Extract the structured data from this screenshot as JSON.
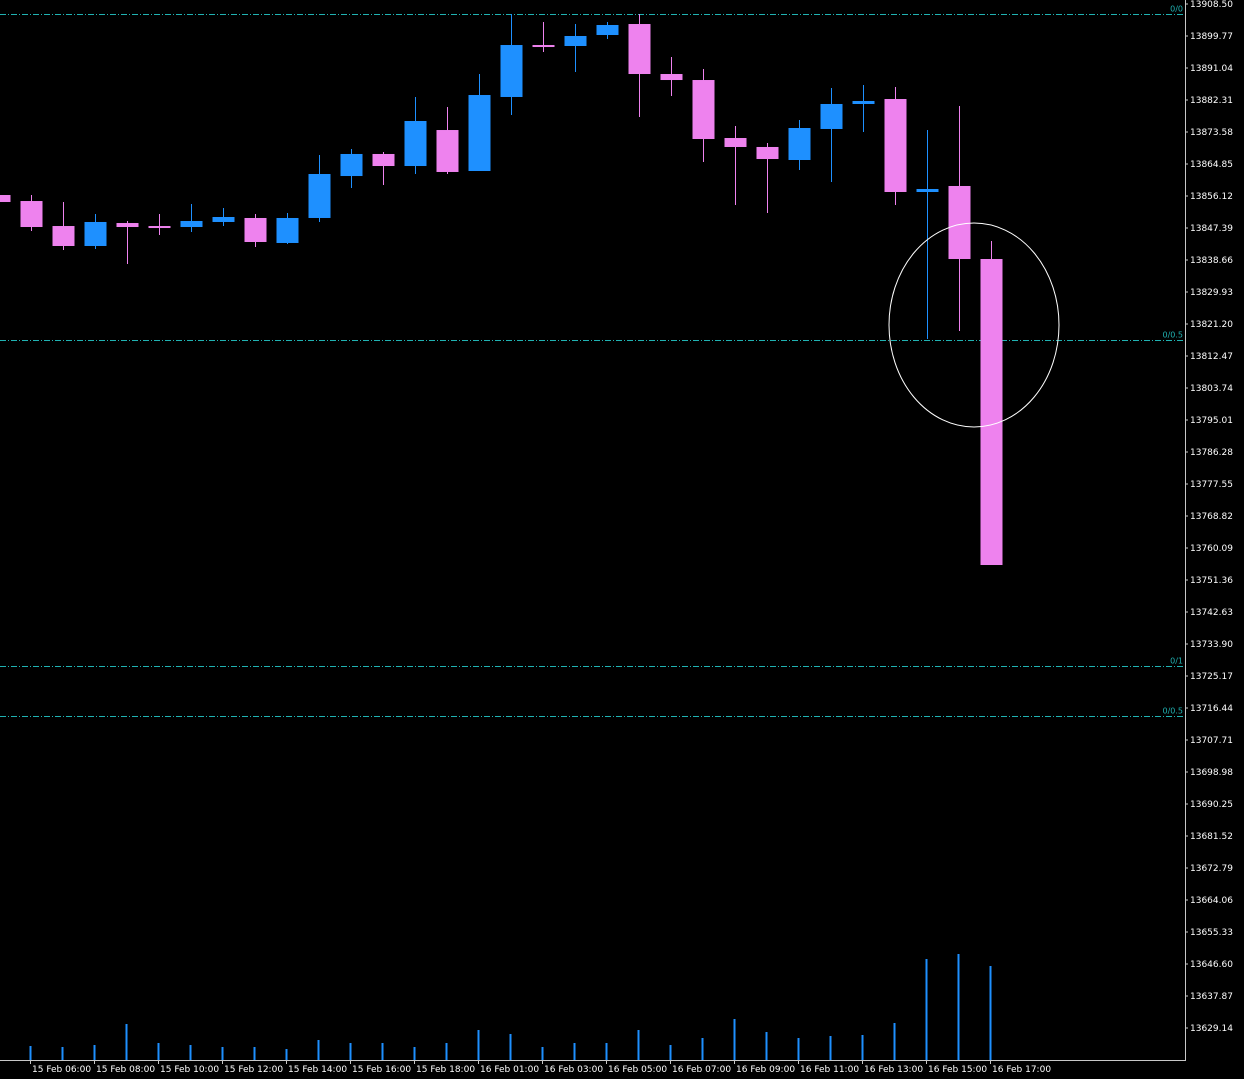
{
  "chart_data": {
    "type": "candlestick",
    "categories": [
      null,
      "15 Feb 06:00",
      null,
      "15 Feb 08:00",
      null,
      "15 Feb 10:00",
      null,
      "15 Feb 12:00",
      null,
      "15 Feb 14:00",
      null,
      "15 Feb 16:00",
      null,
      "15 Feb 18:00",
      null,
      "16 Feb 01:00",
      null,
      "16 Feb 03:00",
      null,
      "16 Feb 05:00",
      null,
      "16 Feb 07:00",
      null,
      "16 Feb 09:00",
      null,
      "16 Feb 11:00",
      null,
      "16 Feb 13:00",
      null,
      "16 Feb 15:00",
      null,
      "16 Feb 17:00"
    ],
    "open": [
      13856.39,
      13854.75,
      13847.93,
      13842.48,
      13848.75,
      13847.93,
      13847.66,
      13849.03,
      13850.12,
      13843.3,
      13850.12,
      13861.57,
      13867.58,
      13864.3,
      13874.12,
      13862.94,
      13883.13,
      13897.31,
      13897.04,
      13900.04,
      13903.04,
      13889.4,
      13887.76,
      13871.94,
      13869.49,
      13865.94,
      13874.4,
      13881.22,
      13882.58,
      13857.21,
      13858.85,
      13838.93
    ],
    "high": [
      13856.39,
      13856.39,
      13854.48,
      13851.21,
      13849.3,
      13851.21,
      13853.94,
      13852.85,
      13851.21,
      13851.48,
      13867.3,
      13868.94,
      13868.12,
      13883.13,
      13880.4,
      13889.4,
      13905.77,
      13903.59,
      13903.04,
      13903.59,
      13905.77,
      13894.04,
      13890.77,
      13875.22,
      13870.58,
      13876.85,
      13885.58,
      13886.4,
      13885.86,
      13874.12,
      13880.67,
      13843.84
    ],
    "low": [
      13854.48,
      13846.57,
      13841.39,
      13841.66,
      13837.57,
      13845.48,
      13846.3,
      13847.93,
      13842.2,
      13843.02,
      13849.03,
      13858.3,
      13859.12,
      13862.12,
      13862.12,
      13862.94,
      13878.22,
      13895.4,
      13889.95,
      13898.95,
      13877.67,
      13883.4,
      13865.39,
      13853.66,
      13851.48,
      13863.21,
      13859.94,
      13873.58,
      13853.66,
      13817.11,
      13819.29,
      13755.45
    ],
    "close": [
      13854.48,
      13847.66,
      13842.48,
      13849.03,
      13847.66,
      13847.39,
      13849.3,
      13850.39,
      13843.57,
      13850.12,
      13862.12,
      13867.58,
      13864.3,
      13876.58,
      13862.67,
      13883.67,
      13897.31,
      13896.77,
      13899.77,
      13902.77,
      13889.4,
      13887.76,
      13871.67,
      13869.49,
      13866.21,
      13874.67,
      13881.22,
      13882.04,
      13857.21,
      13858.03,
      13838.93,
      13755.45
    ],
    "volume": [
      null,
      14,
      13,
      15,
      36,
      17,
      15,
      13,
      13,
      11,
      20,
      17,
      17,
      13,
      17,
      30,
      26,
      13,
      17,
      17,
      30,
      15,
      22,
      41,
      28,
      22,
      24,
      25,
      37,
      101,
      106,
      94
    ],
    "up_color": "#1e90ff",
    "down_color": "#ee82ee",
    "volume_color": "#1e90ff",
    "levels": [
      {
        "value": 13905.77,
        "label": "0/0"
      },
      {
        "value": 13816.83,
        "label": "0/0.5"
      },
      {
        "value": 13727.9,
        "label": "0/1"
      },
      {
        "value": 13714.26,
        "label": "0/0.5"
      }
    ],
    "level_color": "#20b2b2",
    "ylim": [
      13620.41,
      13909.59
    ],
    "yticks": [
      {
        "value": 13908.5,
        "label": "13908.50"
      },
      13899.77,
      13891.04,
      13882.31,
      13873.58,
      13864.85,
      13856.12,
      13847.39,
      13838.66,
      13829.93,
      {
        "value": 13821.2,
        "label": "13821.20"
      },
      13812.47,
      13803.74,
      13795.01,
      13786.28,
      13777.55,
      13768.82,
      13760.09,
      13751.36,
      13742.63,
      {
        "value": 13733.9,
        "label": "13733.90"
      },
      13725.17,
      13716.44,
      13707.71,
      13698.98,
      13690.25,
      13681.52,
      13672.79,
      13664.06,
      13655.33,
      {
        "value": 13646.6,
        "label": "13646.60"
      },
      13637.87,
      13629.14
    ]
  }
}
